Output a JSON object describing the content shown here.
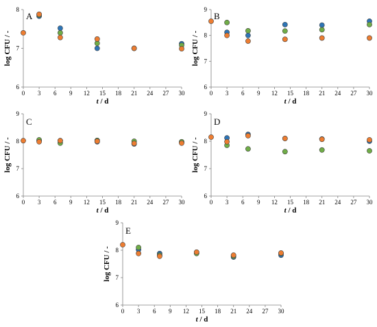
{
  "colors": {
    "series_blue": "#2e75b6",
    "series_green": "#70ad47",
    "series_orange": "#ed7d31",
    "axis": "#808080",
    "marker_edge": "#404040"
  },
  "chart_data": [
    {
      "type": "scatter",
      "panel_label": "A",
      "ylabel": "log CFU / -",
      "xlabel": "/ d",
      "xlabel_symbol": "t",
      "xlim": [
        0,
        30
      ],
      "ylim": [
        6,
        8
      ],
      "xticks": [
        "0",
        "3",
        "6",
        "9",
        "12",
        "15",
        "18",
        "21",
        "24",
        "27",
        "30"
      ],
      "yticks": [
        "6",
        "7",
        "8"
      ],
      "series": [
        {
          "color_key": "series_blue",
          "points": [
            [
              3,
              7.83
            ],
            [
              7,
              7.52
            ],
            [
              14,
              7.0
            ],
            [
              21,
              7.0
            ],
            [
              30,
              7.12
            ]
          ]
        },
        {
          "color_key": "series_green",
          "points": [
            [
              3,
              7.86
            ],
            [
              7,
              7.4
            ],
            [
              14,
              7.13
            ],
            [
              21,
              7.0
            ],
            [
              30,
              7.08
            ]
          ]
        },
        {
          "color_key": "series_orange",
          "points": [
            [
              0,
              7.4
            ],
            [
              3,
              7.88
            ],
            [
              7,
              7.28
            ],
            [
              14,
              7.24
            ],
            [
              21,
              7.0
            ],
            [
              30,
              6.99
            ]
          ]
        }
      ]
    },
    {
      "type": "scatter",
      "panel_label": "B",
      "ylabel": "log CFU / -",
      "xlabel": "/ d",
      "xlabel_symbol": "t",
      "xlim": [
        0,
        30
      ],
      "ylim": [
        6,
        9
      ],
      "xticks": [
        "0",
        "3",
        "6",
        "9",
        "12",
        "15",
        "18",
        "21",
        "24",
        "27",
        "30"
      ],
      "yticks": [
        "6",
        "7",
        "8",
        "9"
      ],
      "series": [
        {
          "color_key": "series_blue",
          "points": [
            [
              3,
              8.12
            ],
            [
              7,
              8.0
            ],
            [
              14,
              8.42
            ],
            [
              21,
              8.4
            ],
            [
              30,
              8.55
            ]
          ]
        },
        {
          "color_key": "series_green",
          "points": [
            [
              3,
              8.5
            ],
            [
              7,
              8.18
            ],
            [
              14,
              8.17
            ],
            [
              21,
              8.22
            ],
            [
              30,
              8.42
            ]
          ]
        },
        {
          "color_key": "series_orange",
          "points": [
            [
              0,
              8.55
            ],
            [
              3,
              8.0
            ],
            [
              7,
              7.78
            ],
            [
              14,
              7.85
            ],
            [
              21,
              7.9
            ],
            [
              30,
              7.9
            ]
          ]
        }
      ]
    },
    {
      "type": "scatter",
      "panel_label": "C",
      "ylabel": "log CFU / -",
      "xlabel": "/ d",
      "xlabel_symbol": "t",
      "xlim": [
        0,
        30
      ],
      "ylim": [
        6,
        9
      ],
      "xticks": [
        "0",
        "3",
        "6",
        "9",
        "12",
        "15",
        "18",
        "21",
        "24",
        "27",
        "30"
      ],
      "yticks": [
        "6",
        "7",
        "8",
        "9"
      ],
      "series": [
        {
          "color_key": "series_blue",
          "points": [
            [
              3,
              8.02
            ],
            [
              7,
              8.02
            ],
            [
              14,
              7.98
            ],
            [
              21,
              7.9
            ],
            [
              30,
              7.95
            ]
          ]
        },
        {
          "color_key": "series_green",
          "points": [
            [
              3,
              8.05
            ],
            [
              7,
              7.93
            ],
            [
              14,
              8.03
            ],
            [
              21,
              8.0
            ],
            [
              30,
              7.98
            ]
          ]
        },
        {
          "color_key": "series_orange",
          "points": [
            [
              0,
              8.02
            ],
            [
              3,
              7.98
            ],
            [
              7,
              8.02
            ],
            [
              14,
              8.0
            ],
            [
              21,
              7.92
            ],
            [
              30,
              7.93
            ]
          ]
        }
      ]
    },
    {
      "type": "scatter",
      "panel_label": "D",
      "ylabel": "log CFU / -",
      "xlabel": "/ d",
      "xlabel_symbol": "t",
      "xlim": [
        0,
        30
      ],
      "ylim": [
        6,
        9
      ],
      "xticks": [
        "0",
        "3",
        "6",
        "9",
        "12",
        "15",
        "18",
        "21",
        "24",
        "27",
        "30"
      ],
      "yticks": [
        "6",
        "7",
        "8",
        "9"
      ],
      "series": [
        {
          "color_key": "series_blue",
          "points": [
            [
              3,
              8.12
            ],
            [
              7,
              8.25
            ],
            [
              14,
              8.1
            ],
            [
              21,
              8.08
            ],
            [
              30,
              8.0
            ]
          ]
        },
        {
          "color_key": "series_green",
          "points": [
            [
              3,
              7.85
            ],
            [
              7,
              7.72
            ],
            [
              14,
              7.62
            ],
            [
              21,
              7.68
            ],
            [
              30,
              7.65
            ]
          ]
        },
        {
          "color_key": "series_orange",
          "points": [
            [
              0,
              8.15
            ],
            [
              3,
              7.98
            ],
            [
              7,
              8.2
            ],
            [
              14,
              8.1
            ],
            [
              21,
              8.07
            ],
            [
              30,
              8.05
            ]
          ]
        }
      ]
    },
    {
      "type": "scatter",
      "panel_label": "E",
      "ylabel": "log CFU / -",
      "xlabel": "/ d",
      "xlabel_symbol": "t",
      "xlim": [
        0,
        30
      ],
      "ylim": [
        6,
        9
      ],
      "xticks": [
        "0",
        "3",
        "6",
        "9",
        "12",
        "15",
        "18",
        "21",
        "24",
        "27",
        "30"
      ],
      "yticks": [
        "6",
        "7",
        "8",
        "9"
      ],
      "series": [
        {
          "color_key": "series_blue",
          "points": [
            [
              3,
              8.02
            ],
            [
              7,
              7.88
            ],
            [
              14,
              7.9
            ],
            [
              21,
              7.75
            ],
            [
              30,
              7.82
            ]
          ]
        },
        {
          "color_key": "series_green",
          "points": [
            [
              3,
              8.1
            ],
            [
              7,
              7.82
            ],
            [
              14,
              7.88
            ],
            [
              21,
              7.78
            ],
            [
              30,
              7.88
            ]
          ]
        },
        {
          "color_key": "series_orange",
          "points": [
            [
              0,
              8.2
            ],
            [
              3,
              7.88
            ],
            [
              7,
              7.78
            ],
            [
              14,
              7.93
            ],
            [
              21,
              7.82
            ],
            [
              30,
              7.9
            ]
          ]
        }
      ]
    }
  ]
}
